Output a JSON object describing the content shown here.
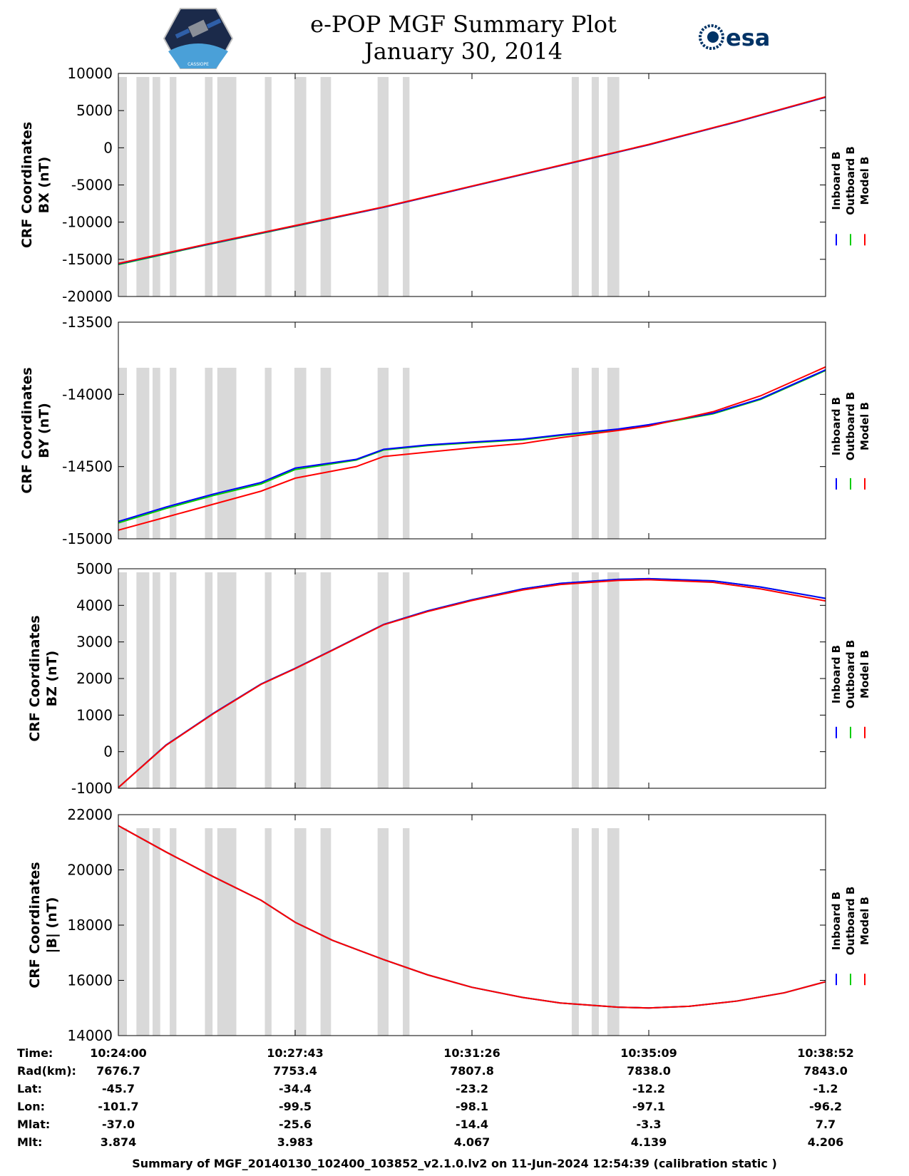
{
  "header": {
    "title_line1": "e-POP MGF Summary Plot",
    "title_line2": "January 30, 2014",
    "logo_left_text": "CASSIOPE",
    "logo_right_text": "esa"
  },
  "colors": {
    "inboard": "#0000ff",
    "outboard": "#00cc00",
    "model": "#ff0000",
    "gap": "#d9d9d9"
  },
  "chart_data": {
    "type": "line",
    "x_ticks": [
      "10:24:00",
      "10:27:43",
      "10:31:26",
      "10:35:09",
      "10:38:52"
    ],
    "x_range_minutes": [
      0,
      14.8667
    ],
    "legend": [
      "Inboard B",
      "Outboard B",
      "Model B"
    ],
    "data_gaps_minutes": [
      [
        0.0,
        0.18
      ],
      [
        0.38,
        0.65
      ],
      [
        0.72,
        0.88
      ],
      [
        1.08,
        1.22
      ],
      [
        1.82,
        1.98
      ],
      [
        2.08,
        2.48
      ],
      [
        3.08,
        3.22
      ],
      [
        3.7,
        3.95
      ],
      [
        4.25,
        4.47
      ],
      [
        5.45,
        5.68
      ],
      [
        5.98,
        6.12
      ],
      [
        9.53,
        9.68
      ],
      [
        9.95,
        10.1
      ],
      [
        10.28,
        10.53
      ]
    ],
    "panels": [
      {
        "id": "bx",
        "ylabel_line1": "CRF Coordinates",
        "ylabel_line2": "BX (nT)",
        "ylim": [
          -20000,
          10000
        ],
        "yticks": [
          "10000",
          "5000",
          "0",
          "-5000",
          "-10000",
          "-15000",
          "-20000"
        ],
        "ytick_values": [
          10000,
          5000,
          0,
          -5000,
          -10000,
          -15000,
          -20000
        ],
        "x": [
          0,
          1.86,
          3.72,
          5.58,
          7.43,
          9.29,
          11.15,
          13.01,
          14.8667
        ],
        "series": [
          {
            "name": "Inboard B",
            "values": [
              -15600,
              -13000,
              -10500,
              -8000,
              -5200,
              -2400,
              400,
              3500,
              6800
            ]
          },
          {
            "name": "Outboard B",
            "values": [
              -15700,
              -13050,
              -10550,
              -8000,
              -5200,
              -2400,
              400,
              3500,
              6800
            ]
          },
          {
            "name": "Model B",
            "values": [
              -15550,
              -12950,
              -10450,
              -7950,
              -5150,
              -2350,
              450,
              3550,
              6850
            ]
          }
        ]
      },
      {
        "id": "by",
        "ylabel_line1": "CRF Coordinates",
        "ylabel_line2": "BY (nT)",
        "ylim": [
          -15000,
          -13500
        ],
        "yticks": [
          "-13500",
          "-14000",
          "-14500",
          "-15000"
        ],
        "ytick_values": [
          -13500,
          -14000,
          -14500,
          -15000
        ],
        "x": [
          0,
          1.0,
          2.0,
          3.0,
          3.72,
          5.0,
          5.58,
          6.5,
          7.43,
          8.5,
          9.29,
          10.5,
          11.15,
          12.5,
          13.5,
          14.8667
        ],
        "series": [
          {
            "name": "Inboard B",
            "values": [
              -14880,
              -14780,
              -14690,
              -14610,
              -14510,
              -14450,
              -14380,
              -14350,
              -14330,
              -14310,
              -14280,
              -14240,
              -14210,
              -14130,
              -14030,
              -13830
            ]
          },
          {
            "name": "Outboard B",
            "values": [
              -14890,
              -14790,
              -14700,
              -14620,
              -14520,
              -14455,
              -14385,
              -14355,
              -14335,
              -14315,
              -14285,
              -14245,
              -14215,
              -14135,
              -14035,
              -13835
            ]
          },
          {
            "name": "Model B",
            "values": [
              -14940,
              -14850,
              -14760,
              -14670,
              -14580,
              -14500,
              -14430,
              -14400,
              -14370,
              -14340,
              -14300,
              -14250,
              -14220,
              -14120,
              -14010,
              -13810
            ]
          }
        ]
      },
      {
        "id": "bz",
        "ylabel_line1": "CRF Coordinates",
        "ylabel_line2": "BZ (nT)",
        "ylim": [
          -1000,
          5000
        ],
        "yticks": [
          "5000",
          "4000",
          "3000",
          "2000",
          "1000",
          "0",
          "-1000"
        ],
        "ytick_values": [
          5000,
          4000,
          3000,
          2000,
          1000,
          0,
          -1000
        ],
        "x": [
          0,
          1.0,
          2.0,
          3.0,
          3.72,
          4.5,
          5.58,
          6.5,
          7.43,
          8.5,
          9.29,
          10.5,
          11.15,
          12.5,
          13.5,
          14.8667
        ],
        "series": [
          {
            "name": "Inboard B",
            "values": [
              -980,
              180,
              1050,
              1850,
              2280,
              2780,
              3480,
              3850,
              4150,
              4450,
              4600,
              4710,
              4730,
              4670,
              4500,
              4190
            ]
          },
          {
            "name": "Outboard B",
            "values": [
              -980,
              180,
              1050,
              1850,
              2280,
              2780,
              3480,
              3850,
              4150,
              4450,
              4600,
              4710,
              4730,
              4670,
              4500,
              4190
            ]
          },
          {
            "name": "Model B",
            "values": [
              -980,
              170,
              1040,
              1840,
              2270,
              2770,
              3470,
              3830,
              4130,
              4420,
              4570,
              4680,
              4700,
              4630,
              4450,
              4120
            ]
          }
        ]
      },
      {
        "id": "bmag",
        "ylabel_line1": "CRF Coordinates",
        "ylabel_line2": "|B| (nT)",
        "ylim": [
          14000,
          22000
        ],
        "yticks": [
          "22000",
          "20000",
          "18000",
          "16000",
          "14000"
        ],
        "ytick_values": [
          22000,
          20000,
          18000,
          16000,
          14000
        ],
        "x": [
          0,
          1.0,
          2.0,
          3.0,
          3.72,
          4.5,
          5.58,
          6.5,
          7.43,
          8.5,
          9.29,
          10.5,
          11.15,
          12.0,
          13.0,
          14.0,
          14.8667
        ],
        "series": [
          {
            "name": "Inboard B",
            "values": [
              21600,
              20650,
              19750,
              18900,
              18100,
              17450,
              16750,
              16200,
              15750,
              15380,
              15180,
              15030,
              15000,
              15060,
              15250,
              15550,
              15950
            ]
          },
          {
            "name": "Outboard B",
            "values": [
              21600,
              20650,
              19750,
              18900,
              18100,
              17450,
              16750,
              16200,
              15750,
              15380,
              15180,
              15030,
              15000,
              15060,
              15250,
              15550,
              15950
            ]
          },
          {
            "name": "Model B",
            "values": [
              21600,
              20650,
              19750,
              18900,
              18100,
              17450,
              16750,
              16200,
              15750,
              15380,
              15180,
              15030,
              15000,
              15060,
              15250,
              15550,
              15950
            ]
          }
        ]
      }
    ]
  },
  "info_table": {
    "labels": [
      "Time:",
      "Rad(km):",
      "Lat:",
      "Lon:",
      "Mlat:",
      "Mlt:"
    ],
    "columns": [
      [
        "10:24:00",
        "7676.7",
        "-45.7",
        "-101.7",
        "-37.0",
        "3.874"
      ],
      [
        "10:27:43",
        "7753.4",
        "-34.4",
        "-99.5",
        "-25.6",
        "3.983"
      ],
      [
        "10:31:26",
        "7807.8",
        "-23.2",
        "-98.1",
        "-14.4",
        "4.067"
      ],
      [
        "10:35:09",
        "7838.0",
        "-12.2",
        "-97.1",
        "-3.3",
        "4.139"
      ],
      [
        "10:38:52",
        "7843.0",
        "-1.2",
        "-96.2",
        "7.7",
        "4.206"
      ]
    ]
  },
  "footer": {
    "text": "Summary of MGF_20140130_102400_103852_v2.1.0.lv2 on 11-Jun-2024 12:54:39 (calibration static )"
  }
}
